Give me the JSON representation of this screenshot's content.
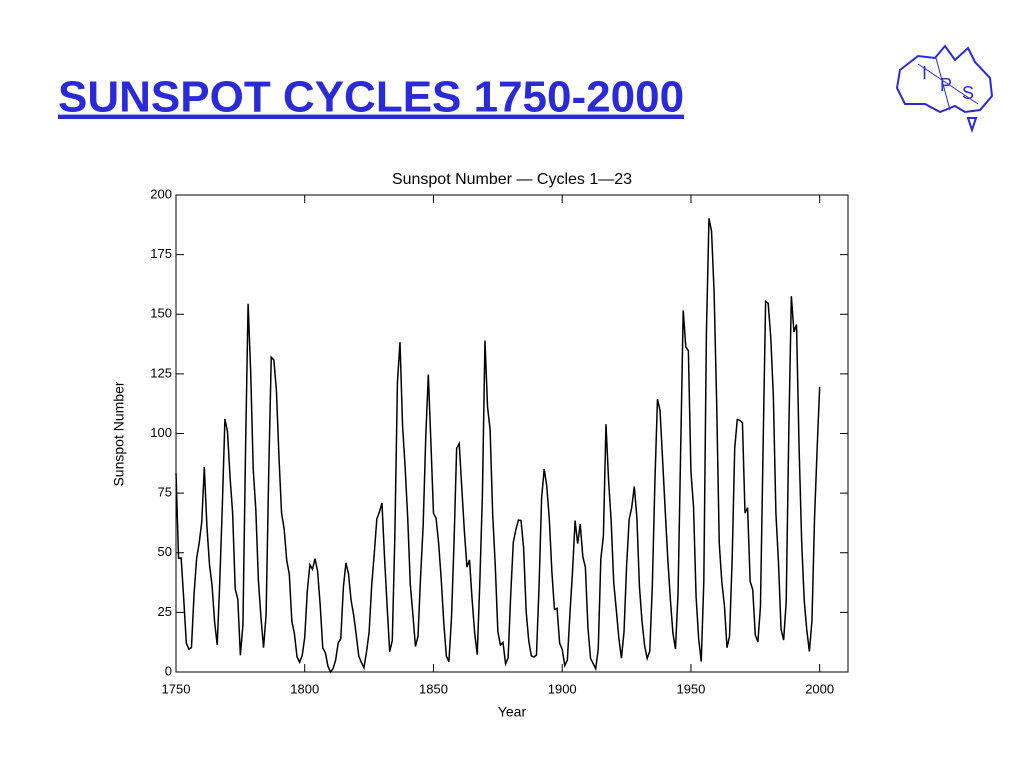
{
  "heading": "SUNSPOT CYCLES 1750-2000",
  "logo": {
    "letters": [
      "I",
      "P",
      "S"
    ]
  },
  "chart_data": {
    "type": "line",
    "title": "Sunspot Number — Cycles 1—23",
    "x_label": "Year",
    "y_label": "Sunspot Number",
    "color": "#000000",
    "xlim": [
      1750,
      2011
    ],
    "ylim": [
      0,
      200
    ],
    "xticks": [
      1750,
      1800,
      1850,
      1900,
      1950,
      2000
    ],
    "yticks": [
      0,
      25,
      50,
      75,
      100,
      125,
      150,
      175,
      200
    ],
    "x": [
      1750,
      1751,
      1752,
      1753,
      1754,
      1755,
      1756,
      1757,
      1758,
      1759,
      1760,
      1761,
      1762,
      1763,
      1764,
      1765,
      1766,
      1767,
      1768,
      1769,
      1770,
      1771,
      1772,
      1773,
      1774,
      1775,
      1776,
      1777,
      1778,
      1779,
      1780,
      1781,
      1782,
      1783,
      1784,
      1785,
      1786,
      1787,
      1788,
      1789,
      1790,
      1791,
      1792,
      1793,
      1794,
      1795,
      1796,
      1797,
      1798,
      1799,
      1800,
      1801,
      1802,
      1803,
      1804,
      1805,
      1806,
      1807,
      1808,
      1809,
      1810,
      1811,
      1812,
      1813,
      1814,
      1815,
      1816,
      1817,
      1818,
      1819,
      1820,
      1821,
      1822,
      1823,
      1824,
      1825,
      1826,
      1827,
      1828,
      1829,
      1830,
      1831,
      1832,
      1833,
      1834,
      1835,
      1836,
      1837,
      1838,
      1839,
      1840,
      1841,
      1842,
      1843,
      1844,
      1845,
      1846,
      1847,
      1848,
      1849,
      1850,
      1851,
      1852,
      1853,
      1854,
      1855,
      1856,
      1857,
      1858,
      1859,
      1860,
      1861,
      1862,
      1863,
      1864,
      1865,
      1866,
      1867,
      1868,
      1869,
      1870,
      1871,
      1872,
      1873,
      1874,
      1875,
      1876,
      1877,
      1878,
      1879,
      1880,
      1881,
      1882,
      1883,
      1884,
      1885,
      1886,
      1887,
      1888,
      1889,
      1890,
      1891,
      1892,
      1893,
      1894,
      1895,
      1896,
      1897,
      1898,
      1899,
      1900,
      1901,
      1902,
      1903,
      1904,
      1905,
      1906,
      1907,
      1908,
      1909,
      1910,
      1911,
      1912,
      1913,
      1914,
      1915,
      1916,
      1917,
      1918,
      1919,
      1920,
      1921,
      1922,
      1923,
      1924,
      1925,
      1926,
      1927,
      1928,
      1929,
      1930,
      1931,
      1932,
      1933,
      1934,
      1935,
      1936,
      1937,
      1938,
      1939,
      1940,
      1941,
      1942,
      1943,
      1944,
      1945,
      1946,
      1947,
      1948,
      1949,
      1950,
      1951,
      1952,
      1953,
      1954,
      1955,
      1956,
      1957,
      1958,
      1959,
      1960,
      1961,
      1962,
      1963,
      1964,
      1965,
      1966,
      1967,
      1968,
      1969,
      1970,
      1971,
      1972,
      1973,
      1974,
      1975,
      1976,
      1977,
      1978,
      1979,
      1980,
      1981,
      1982,
      1983,
      1984,
      1985,
      1986,
      1987,
      1988,
      1989,
      1990,
      1991,
      1992,
      1993,
      1994,
      1995,
      1996,
      1997,
      1998,
      1999,
      2000
    ],
    "values": [
      83.4,
      47.7,
      47.8,
      30.7,
      12.2,
      9.6,
      10.2,
      32.4,
      47.6,
      54.0,
      62.9,
      85.9,
      61.2,
      45.1,
      36.4,
      20.9,
      11.4,
      37.8,
      69.8,
      106.1,
      100.8,
      81.6,
      66.5,
      34.8,
      30.6,
      7.0,
      19.8,
      92.5,
      154.4,
      125.9,
      84.8,
      68.1,
      38.5,
      22.8,
      10.2,
      24.1,
      82.9,
      132.0,
      130.9,
      118.1,
      89.9,
      66.6,
      60.0,
      46.9,
      41.0,
      21.3,
      16.0,
      6.4,
      4.1,
      6.8,
      14.5,
      34.0,
      45.0,
      43.1,
      47.5,
      42.2,
      28.1,
      10.1,
      8.1,
      2.5,
      0.0,
      1.4,
      5.0,
      12.2,
      13.9,
      35.4,
      45.8,
      41.1,
      30.1,
      23.9,
      15.6,
      6.6,
      4.0,
      1.8,
      8.5,
      16.6,
      36.3,
      49.6,
      64.2,
      67.0,
      70.9,
      47.8,
      27.5,
      8.5,
      13.2,
      56.9,
      121.5,
      138.3,
      103.2,
      85.7,
      64.6,
      36.7,
      24.2,
      10.7,
      15.0,
      40.1,
      61.5,
      98.5,
      124.7,
      96.3,
      66.6,
      64.5,
      54.1,
      39.0,
      20.6,
      6.7,
      4.3,
      22.7,
      54.8,
      93.8,
      95.8,
      77.2,
      59.1,
      44.0,
      47.0,
      30.5,
      16.3,
      7.3,
      37.6,
      74.0,
      139.0,
      111.2,
      101.6,
      66.2,
      44.7,
      17.0,
      11.3,
      12.4,
      3.4,
      6.0,
      32.3,
      54.3,
      59.7,
      63.7,
      63.5,
      52.2,
      25.4,
      13.1,
      6.8,
      6.3,
      7.1,
      35.6,
      73.0,
      85.1,
      78.0,
      64.0,
      41.8,
      26.2,
      26.7,
      12.1,
      9.5,
      2.7,
      5.0,
      24.4,
      42.0,
      63.5,
      53.8,
      62.0,
      48.5,
      43.9,
      18.6,
      5.7,
      3.6,
      1.4,
      9.6,
      47.4,
      57.1,
      103.9,
      80.6,
      63.6,
      37.6,
      26.1,
      14.2,
      5.8,
      16.7,
      44.3,
      63.9,
      69.0,
      77.8,
      64.9,
      35.7,
      21.2,
      11.1,
      5.7,
      8.7,
      36.1,
      79.7,
      114.4,
      109.6,
      88.8,
      67.8,
      47.5,
      30.6,
      16.3,
      9.6,
      33.2,
      92.6,
      151.6,
      136.3,
      134.7,
      83.9,
      69.4,
      31.5,
      13.9,
      4.4,
      38.0,
      141.7,
      190.2,
      184.8,
      159.0,
      112.3,
      53.9,
      37.6,
      27.9,
      10.2,
      15.1,
      47.0,
      93.8,
      105.9,
      105.5,
      104.5,
      66.6,
      68.9,
      38.0,
      34.5,
      15.5,
      12.6,
      27.5,
      92.5,
      155.4,
      154.6,
      140.4,
      115.9,
      66.6,
      45.9,
      17.9,
      13.4,
      29.4,
      100.2,
      157.6,
      142.6,
      145.7,
      94.3,
      54.6,
      29.9,
      17.5,
      8.6,
      21.5,
      64.3,
      93.3,
      119.6
    ]
  }
}
